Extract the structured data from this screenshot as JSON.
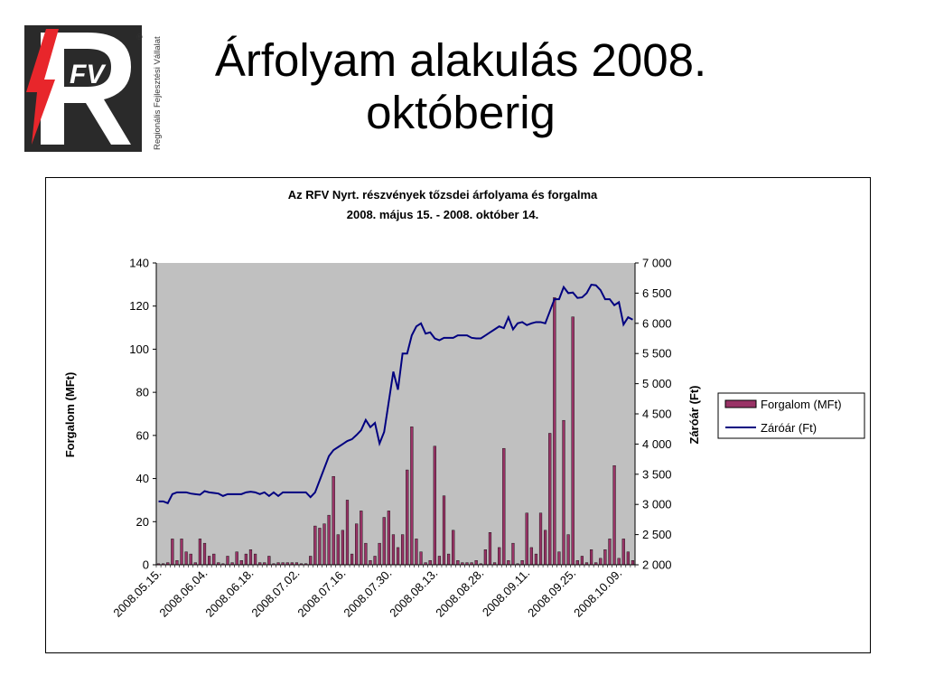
{
  "slide": {
    "title_line1": "Árfolyam alakulás 2008.",
    "title_line2": "októberig"
  },
  "logo": {
    "letters": "FV",
    "tagline": "Regionális Fejlesztési Vállalat",
    "registered": "®",
    "colors": {
      "red": "#e8262b",
      "dark": "#2a2a2a"
    }
  },
  "chart_data": {
    "type": "bar+line",
    "title_line1": "Az RFV Nyrt. részvények tőzsdei árfolyama és forgalma",
    "title_line2": "2008. május 15. - 2008. október 14.",
    "ylabel_left": "Forgalom (MFt)",
    "ylabel_right": "Záróár (Ft)",
    "ylim_left": [
      0,
      140
    ],
    "ylim_right": [
      2000,
      7000
    ],
    "yticks_left": [
      "0",
      "20",
      "40",
      "60",
      "80",
      "100",
      "120",
      "140"
    ],
    "yticks_right": [
      "2 000",
      "2 500",
      "3 000",
      "3 500",
      "4 000",
      "4 500",
      "5 000",
      "5 500",
      "6 000",
      "6 500",
      "7 000"
    ],
    "xtick_labels": [
      "2008.05.15.",
      "2008.06.04.",
      "2008.06.18.",
      "2008.07.02.",
      "2008.07.16.",
      "2008.07.30.",
      "2008.08.13.",
      "2008.08.28.",
      "2008.09.11.",
      "2008.09.25.",
      "2008.10.09."
    ],
    "xtick_indices": [
      0,
      10,
      20,
      30,
      40,
      50,
      60,
      70,
      80,
      90,
      100
    ],
    "legend_position": "right",
    "plot_background": "#c0c0c0",
    "series": [
      {
        "name": "Forgalom (MFt)",
        "kind": "bar",
        "color": "#993366",
        "values": [
          0.5,
          0.5,
          1,
          12,
          2,
          12,
          6,
          5,
          1,
          12,
          10,
          4,
          5,
          1,
          0.5,
          4,
          1,
          6,
          2,
          5,
          7,
          5,
          1,
          1,
          4,
          0.5,
          1,
          1,
          1,
          1,
          1,
          0.5,
          0.5,
          4,
          18,
          17,
          19,
          23,
          41,
          14,
          16,
          30,
          5,
          19,
          25,
          10,
          2,
          4,
          10,
          22,
          25,
          14,
          8,
          14,
          44,
          64,
          12,
          6,
          1,
          2,
          55,
          4,
          32,
          5,
          16,
          2,
          1,
          1,
          1,
          2,
          0.5,
          7,
          15,
          1,
          8,
          54,
          2,
          10,
          0.5,
          2,
          24,
          8,
          5,
          24,
          16,
          61,
          124,
          6,
          67,
          14,
          115,
          2,
          4,
          1,
          7,
          1,
          3,
          7,
          12,
          46,
          3,
          12,
          6,
          2
        ]
      },
      {
        "name": "Záróár (Ft)",
        "kind": "line",
        "color": "#000080",
        "values": [
          3050,
          3050,
          3020,
          3170,
          3200,
          3200,
          3200,
          3180,
          3170,
          3160,
          3220,
          3200,
          3190,
          3180,
          3140,
          3170,
          3170,
          3170,
          3170,
          3200,
          3210,
          3200,
          3170,
          3200,
          3140,
          3200,
          3140,
          3200,
          3200,
          3200,
          3200,
          3200,
          3200,
          3120,
          3200,
          3400,
          3600,
          3800,
          3900,
          3950,
          4000,
          4050,
          4080,
          4150,
          4230,
          4400,
          4280,
          4350,
          4010,
          4200,
          4700,
          5200,
          4900,
          5500,
          5500,
          5800,
          5950,
          6000,
          5830,
          5850,
          5750,
          5720,
          5760,
          5760,
          5760,
          5800,
          5800,
          5800,
          5760,
          5750,
          5750,
          5800,
          5850,
          5900,
          5950,
          5920,
          6100,
          5900,
          6000,
          6020,
          5970,
          6000,
          6020,
          6020,
          6000,
          6200,
          6400,
          6400,
          6600,
          6500,
          6510,
          6420,
          6430,
          6500,
          6640,
          6630,
          6550,
          6400,
          6400,
          6300,
          6350,
          5980,
          6100,
          6060
        ]
      }
    ]
  }
}
